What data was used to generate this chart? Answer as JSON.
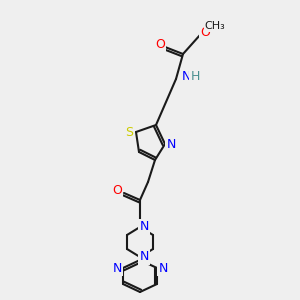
{
  "background_color": "#efefef",
  "bond_color": "#1a1a1a",
  "bond_width": 1.5,
  "atom_colors": {
    "N": "#0000ff",
    "O": "#ff0000",
    "S": "#cccc00",
    "H": "#4a9090",
    "C": "#1a1a1a"
  },
  "font_size": 9,
  "font_size_small": 8
}
